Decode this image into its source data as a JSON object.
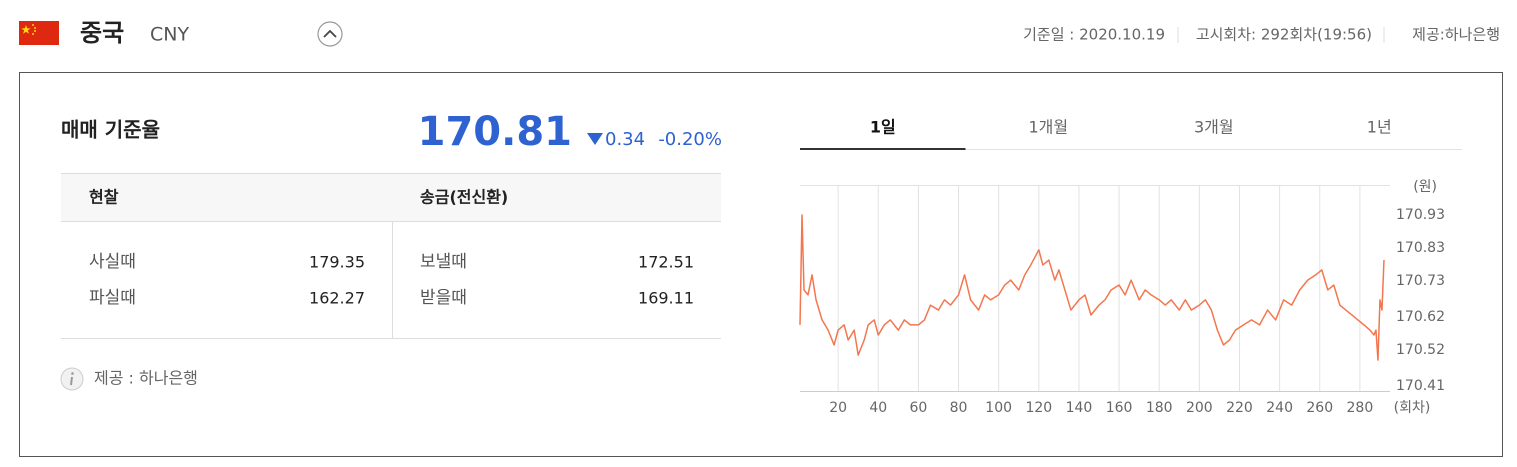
{
  "header": {
    "country": "중국",
    "currency": "CNY",
    "base_date": "기준일 : 2020.10.19",
    "round": "고시회차: 292회차(19:56)",
    "provider": "제공:하나은행"
  },
  "rate": {
    "label": "매매 기준율",
    "value": 170.81,
    "change": 0.34,
    "change_pct": "-0.20%"
  },
  "table": {
    "columns": [
      {
        "header": "현찰",
        "rows": [
          {
            "label": "사실때",
            "value": 179.35
          },
          {
            "label": "파실때",
            "value": 162.27
          }
        ]
      },
      {
        "header": "송금(전신환)",
        "rows": [
          {
            "label": "보낼때",
            "value": 172.51
          },
          {
            "label": "받을때",
            "value": 169.11
          }
        ]
      }
    ]
  },
  "note": "제공 : 하나은행",
  "tabs": [
    "1일",
    "1개월",
    "3개월",
    "1년"
  ],
  "active_tab": 0,
  "chart_data": {
    "type": "line",
    "y_label": "(원)",
    "x_label": "(회차)",
    "color": "#f4764f",
    "x": [
      1,
      2,
      3,
      5,
      7,
      9,
      12,
      15,
      18,
      20,
      23,
      25,
      28,
      30,
      33,
      35,
      38,
      40,
      43,
      46,
      50,
      53,
      56,
      60,
      63,
      66,
      70,
      73,
      76,
      80,
      83,
      86,
      90,
      93,
      96,
      100,
      103,
      106,
      110,
      113,
      116,
      120,
      122,
      125,
      128,
      130,
      133,
      136,
      140,
      143,
      146,
      150,
      153,
      156,
      160,
      163,
      166,
      170,
      173,
      176,
      180,
      183,
      186,
      190,
      193,
      196,
      200,
      203,
      206,
      209,
      212,
      215,
      218,
      222,
      226,
      230,
      234,
      238,
      242,
      246,
      250,
      254,
      258,
      261,
      264,
      267,
      270,
      273,
      276,
      279,
      282,
      285,
      287,
      288,
      289,
      290,
      291,
      292
    ],
    "values": [
      170.596,
      170.93,
      170.702,
      170.687,
      170.748,
      170.672,
      170.611,
      170.58,
      170.535,
      170.58,
      170.596,
      170.55,
      170.58,
      170.504,
      170.55,
      170.596,
      170.611,
      170.565,
      170.596,
      170.611,
      170.58,
      170.611,
      170.596,
      170.596,
      170.611,
      170.656,
      170.641,
      170.672,
      170.656,
      170.687,
      170.748,
      170.672,
      170.641,
      170.687,
      170.672,
      170.687,
      170.717,
      170.732,
      170.702,
      170.748,
      170.778,
      170.824,
      170.778,
      170.793,
      170.732,
      170.763,
      170.702,
      170.641,
      170.672,
      170.687,
      170.626,
      170.656,
      170.672,
      170.702,
      170.717,
      170.687,
      170.732,
      170.672,
      170.702,
      170.687,
      170.672,
      170.656,
      170.672,
      170.641,
      170.672,
      170.641,
      170.656,
      170.672,
      170.641,
      170.58,
      170.535,
      170.55,
      170.58,
      170.596,
      170.611,
      170.596,
      170.641,
      170.611,
      170.672,
      170.656,
      170.702,
      170.732,
      170.748,
      170.763,
      170.702,
      170.717,
      170.656,
      170.641,
      170.626,
      170.611,
      170.596,
      170.58,
      170.565,
      170.58,
      170.489,
      170.672,
      170.641,
      170.793
    ],
    "xlim": [
      1,
      295
    ],
    "ylim": [
      170.395,
      171.021
    ],
    "xticks": [
      20,
      40,
      60,
      80,
      100,
      120,
      140,
      160,
      180,
      200,
      220,
      240,
      260,
      280
    ],
    "yticks": [
      170.93,
      170.83,
      170.73,
      170.62,
      170.52,
      170.41
    ],
    "grid": true
  }
}
